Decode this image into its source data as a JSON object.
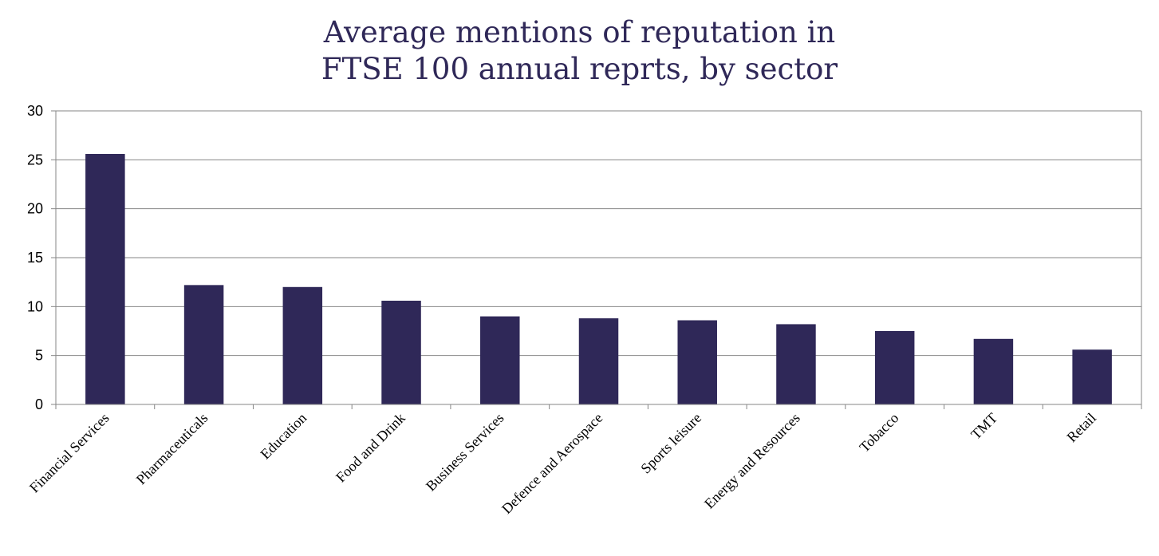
{
  "chart_data": {
    "type": "bar",
    "title_lines": [
      "Average mentions of reputation in",
      "FTSE 100 annual reprts, by sector"
    ],
    "categories": [
      "Financial Services",
      "Pharmaceuticals",
      "Education",
      "Food and Drink",
      "Business Services",
      "Defence and Aerospace",
      "Sports leisure",
      "Energy and Resources",
      "Tobacco",
      "TMT",
      "Retail"
    ],
    "values": [
      25.6,
      12.2,
      12.0,
      10.6,
      9.0,
      8.8,
      8.6,
      8.2,
      7.5,
      6.7,
      5.6
    ],
    "ylim": [
      0,
      30
    ],
    "yticks": [
      0,
      5,
      10,
      15,
      20,
      25,
      30
    ],
    "xlabel": "",
    "ylabel": "",
    "grid": true,
    "legend": "none",
    "bar_color": "#2f2858",
    "gridline_color": "#868686"
  }
}
